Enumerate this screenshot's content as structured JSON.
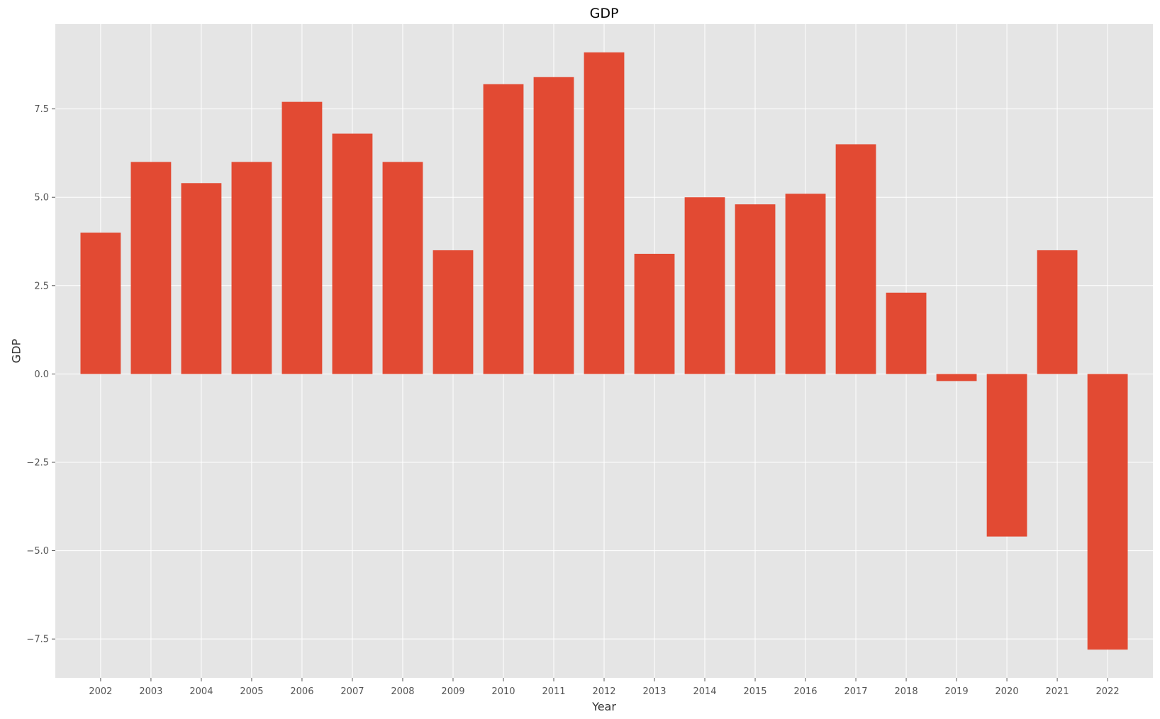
{
  "chart_data": {
    "type": "bar",
    "title": "GDP",
    "xlabel": "Year",
    "ylabel": "GDP",
    "categories": [
      "2002",
      "2003",
      "2004",
      "2005",
      "2006",
      "2007",
      "2008",
      "2009",
      "2010",
      "2011",
      "2012",
      "2013",
      "2014",
      "2015",
      "2016",
      "2017",
      "2018",
      "2019",
      "2020",
      "2021",
      "2022"
    ],
    "values": [
      4.0,
      6.0,
      5.4,
      6.0,
      7.7,
      6.8,
      6.0,
      3.5,
      8.2,
      8.4,
      9.1,
      3.4,
      5.0,
      4.8,
      5.1,
      6.5,
      2.3,
      -0.2,
      -4.6,
      3.5,
      -7.8
    ],
    "ylim": [
      -8.6,
      9.9
    ],
    "yticks": [
      -7.5,
      -5.0,
      -2.5,
      0.0,
      2.5,
      5.0,
      7.5
    ],
    "ytick_labels": [
      "−7.5",
      "−5.0",
      "−2.5",
      "0.0",
      "2.5",
      "5.0",
      "7.5"
    ],
    "grid": true,
    "colors": {
      "bar": "#E24A33",
      "plot_background": "#E5E5E5",
      "grid": "#FFFFFF"
    }
  }
}
